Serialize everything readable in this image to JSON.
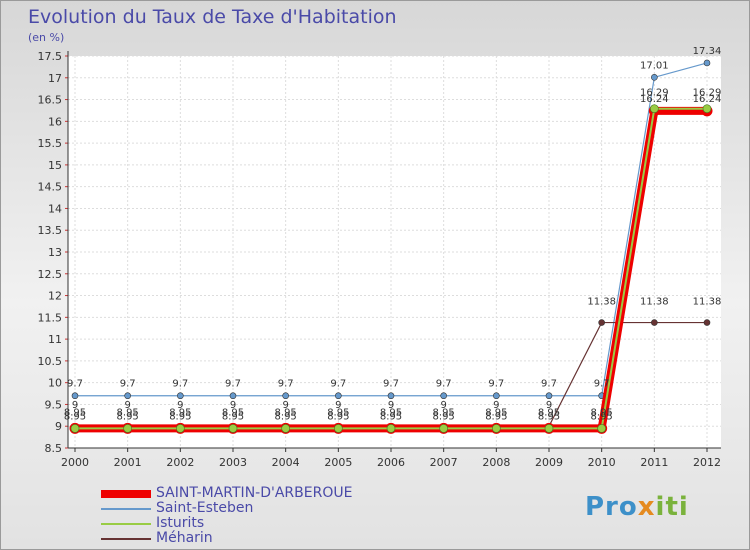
{
  "header": {
    "title": "Evolution du Taux de Taxe d'Habitation",
    "unit": "(en %)"
  },
  "logo": {
    "part1": "Pro",
    "part2": "x",
    "part3": "iti"
  },
  "chart_data": {
    "type": "line",
    "title": "Evolution du Taux de Taxe d'Habitation",
    "ylabel": "(en %)",
    "xlabel": "",
    "ylim": [
      8.5,
      17.5
    ],
    "y_ticks": [
      "8.5",
      "9",
      "9.5",
      "10",
      "10.5",
      "11",
      "11.5",
      "12",
      "12.5",
      "13",
      "13.5",
      "14",
      "14.5",
      "15",
      "15.5",
      "16",
      "16.5",
      "17",
      "17.5"
    ],
    "categories": [
      "2000",
      "2001",
      "2002",
      "2003",
      "2004",
      "2005",
      "2006",
      "2007",
      "2008",
      "2009",
      "2010",
      "2011",
      "2012"
    ],
    "legend_position": "bottom-left",
    "series": [
      {
        "name": "SAINT-MARTIN-D'ARBEROUE",
        "color": "#ee0000",
        "values": [
          8.95,
          8.95,
          8.95,
          8.95,
          8.95,
          8.95,
          8.95,
          8.95,
          8.95,
          8.95,
          8.95,
          16.24,
          16.24
        ]
      },
      {
        "name": "Saint-Esteben",
        "color": "#6699cc",
        "values": [
          9.7,
          9.7,
          9.7,
          9.7,
          9.7,
          9.7,
          9.7,
          9.7,
          9.7,
          9.7,
          9.7,
          17.01,
          17.34
        ]
      },
      {
        "name": "Isturits",
        "color": "#99cc44",
        "values": [
          8.95,
          8.95,
          8.95,
          8.95,
          8.95,
          8.95,
          8.95,
          8.95,
          8.95,
          8.95,
          8.95,
          16.29,
          16.29
        ]
      },
      {
        "name": "Méharin",
        "color": "#663333",
        "values": [
          9,
          9,
          9,
          9,
          9,
          9,
          9,
          9,
          9,
          9,
          11.38,
          11.38,
          11.38
        ]
      }
    ]
  }
}
